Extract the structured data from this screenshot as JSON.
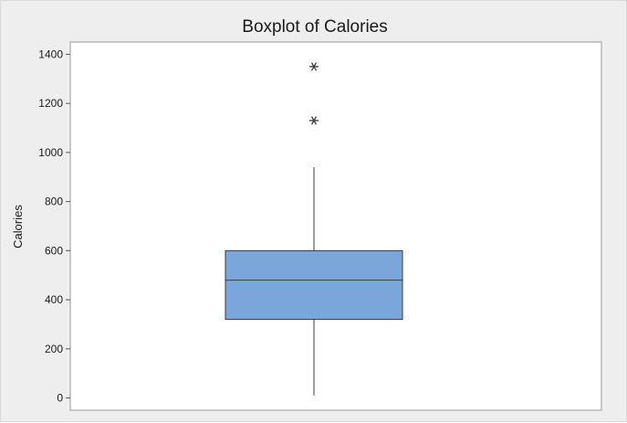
{
  "chart_data": {
    "type": "boxplot",
    "title": "Boxplot of Calories",
    "xlabel": "",
    "ylabel": "Calories",
    "ylim": [
      -50,
      1450
    ],
    "yticks": [
      0,
      200,
      400,
      600,
      800,
      1000,
      1200,
      1400
    ],
    "grid": false,
    "box": {
      "whisker_low": 10,
      "q1": 320,
      "median": 480,
      "q3": 600,
      "whisker_high": 940
    },
    "outliers": [
      1130,
      1350
    ],
    "colors": {
      "box_fill": "#7ba6db",
      "box_stroke": "#3a3a3a",
      "outlier": "#3a3a3a",
      "plot_background": "#ffffff",
      "figure_background": "#eeeeee"
    }
  }
}
